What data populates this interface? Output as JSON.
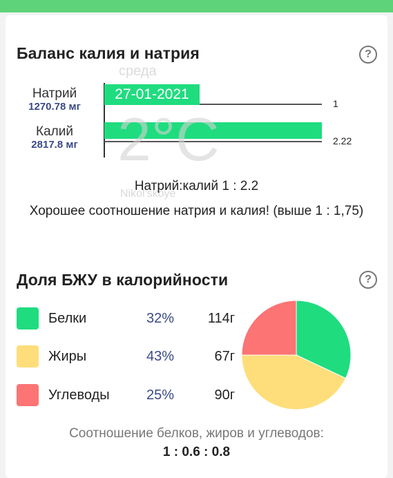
{
  "colors": {
    "top_bar": "#5fd37a",
    "bar_green": "#1fdc7f",
    "protein": "#1fdc7f",
    "fat": "#fede7a",
    "carbs": "#fc7474",
    "value_blue": "#3a4a86"
  },
  "potassium_sodium": {
    "title": "Баланс калия и натрия",
    "help_icon": "?",
    "rows": [
      {
        "name": "Натрий",
        "amount": "1270.78 мг",
        "ratio_label": "1",
        "ratio": 1
      },
      {
        "name": "Калий",
        "amount": "2817.8 мг",
        "ratio_label": "2.22",
        "ratio": 2.22
      }
    ],
    "ratio_text": "Натрий:калий 1 : 2.2",
    "comment": "Хорошее соотношение натрия и калия! (выше 1 : 1,75)"
  },
  "weather_overlay": {
    "day": "среда",
    "date": "27-01-2021",
    "temperature": "2°C",
    "place": "Nikol'skoye"
  },
  "macros": {
    "title": "Доля БЖУ в калорийности",
    "help_icon": "?",
    "items": [
      {
        "name": "Белки",
        "percent": "32%",
        "grams": "114г",
        "share": 32,
        "color": "#1fdc7f"
      },
      {
        "name": "Жиры",
        "percent": "43%",
        "grams": "67г",
        "share": 43,
        "color": "#fede7a"
      },
      {
        "name": "Углеводы",
        "percent": "25%",
        "grams": "90г",
        "share": 25,
        "color": "#fc7474"
      }
    ],
    "ratio_caption": "Соотношение белков, жиров и углеводов:",
    "ratio_value": "1 : 0.6 : 0.8"
  }
}
